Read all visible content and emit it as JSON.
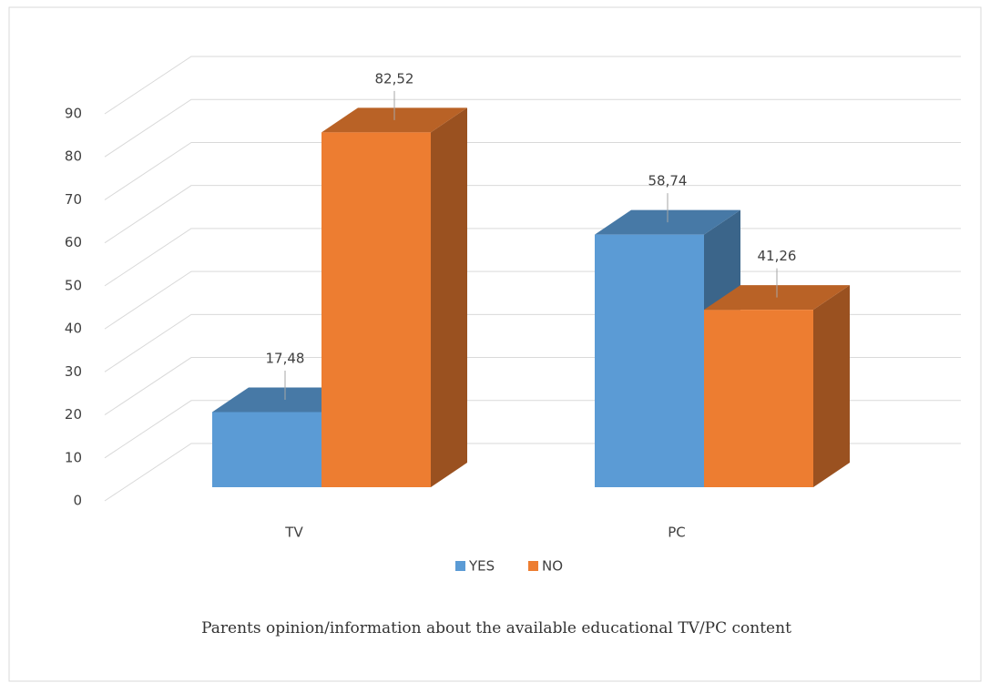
{
  "chart_data": {
    "type": "bar3d",
    "title": "Parents opinion/information about the available educational TV/PC content",
    "categories": [
      "TV",
      "PC"
    ],
    "series": [
      {
        "name": "YES",
        "color": "#5b9bd5",
        "values": [
          17.48,
          58.74
        ],
        "value_labels": [
          "17,48",
          "58,74"
        ]
      },
      {
        "name": "NO",
        "color": "#ed7d31",
        "values": [
          82.52,
          41.26
        ],
        "value_labels": [
          "82,52",
          "41,26"
        ]
      }
    ],
    "ylim": [
      0,
      90
    ],
    "yticks": [
      0,
      10,
      20,
      30,
      40,
      50,
      60,
      70,
      80,
      90
    ],
    "grid": true,
    "legend": "bottom"
  }
}
